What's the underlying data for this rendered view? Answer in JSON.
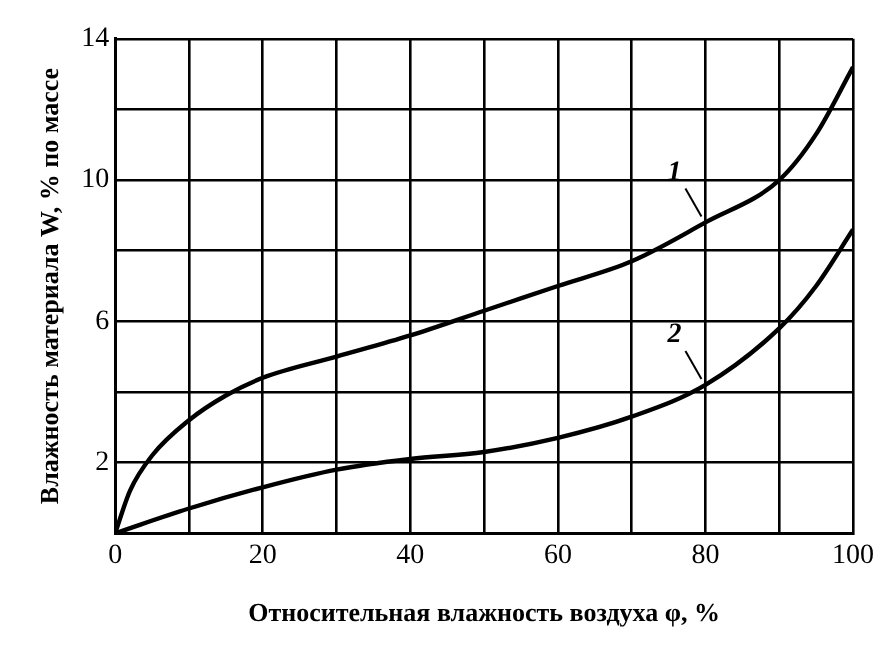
{
  "chart_data": {
    "type": "line",
    "xlabel": "Относительная влажность воздуха φ, %",
    "ylabel": "Влажность материала W, % по массе",
    "xlim": [
      0,
      100
    ],
    "xticks": [
      0,
      {
        "value": 10,
        "label": null
      },
      20,
      {
        "value": 30,
        "label": null
      },
      40,
      {
        "value": 50,
        "label": null
      },
      60,
      {
        "value": 70,
        "label": null
      },
      80,
      {
        "value": 90,
        "label": null
      },
      100
    ],
    "ylim": [
      0,
      14
    ],
    "yticks": [
      {
        "value": 0,
        "label": null
      },
      2,
      {
        "value": 4,
        "label": null
      },
      6,
      {
        "value": 8,
        "label": null
      },
      10,
      {
        "value": 12,
        "label": null
      },
      14
    ],
    "grid": true,
    "legend": false,
    "marker": "none",
    "line_style": "solid",
    "series": [
      {
        "name": "1",
        "color": "#000000",
        "x": [
          0,
          2,
          5,
          10,
          15,
          20,
          30,
          40,
          50,
          60,
          70,
          80,
          90,
          95,
          100
        ],
        "values": [
          0,
          1.2,
          2.2,
          3.2,
          3.9,
          4.4,
          5.0,
          5.6,
          6.3,
          7.0,
          7.7,
          8.8,
          10.0,
          11.3,
          13.2
        ]
      },
      {
        "name": "2",
        "color": "#000000",
        "x": [
          0,
          10,
          20,
          30,
          40,
          50,
          60,
          70,
          80,
          90,
          95,
          100
        ],
        "values": [
          0,
          0.7,
          1.3,
          1.8,
          2.1,
          2.3,
          2.7,
          3.3,
          4.2,
          5.8,
          7.0,
          8.6
        ]
      }
    ]
  }
}
